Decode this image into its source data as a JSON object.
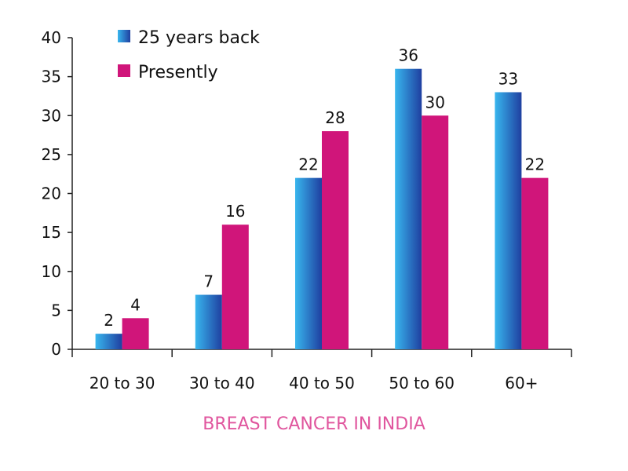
{
  "colors": {
    "series_1": "#2f7fd6",
    "series_1_dark": "#1f3fa0",
    "series_1_light": "#38b6ee",
    "series_2": "#d0157a",
    "caption": "#e0569e"
  },
  "chart_data": {
    "type": "bar",
    "title": "",
    "caption": "BREAST CANCER IN INDIA",
    "xlabel": "",
    "ylabel": "",
    "categories": [
      "20 to 30",
      "30 to 40",
      "40 to 50",
      "50 to 60",
      "60+"
    ],
    "series": [
      {
        "name": "25 years back",
        "values": [
          2,
          7,
          22,
          36,
          33
        ]
      },
      {
        "name": "Presently",
        "values": [
          4,
          16,
          28,
          30,
          22
        ]
      }
    ],
    "yticks": [
      "0",
      "5",
      "10",
      "15",
      "20",
      "25",
      "30",
      "35",
      "40"
    ],
    "ylim": [
      0,
      40
    ],
    "grid": false,
    "legend": "top-left",
    "data_labels": true
  }
}
